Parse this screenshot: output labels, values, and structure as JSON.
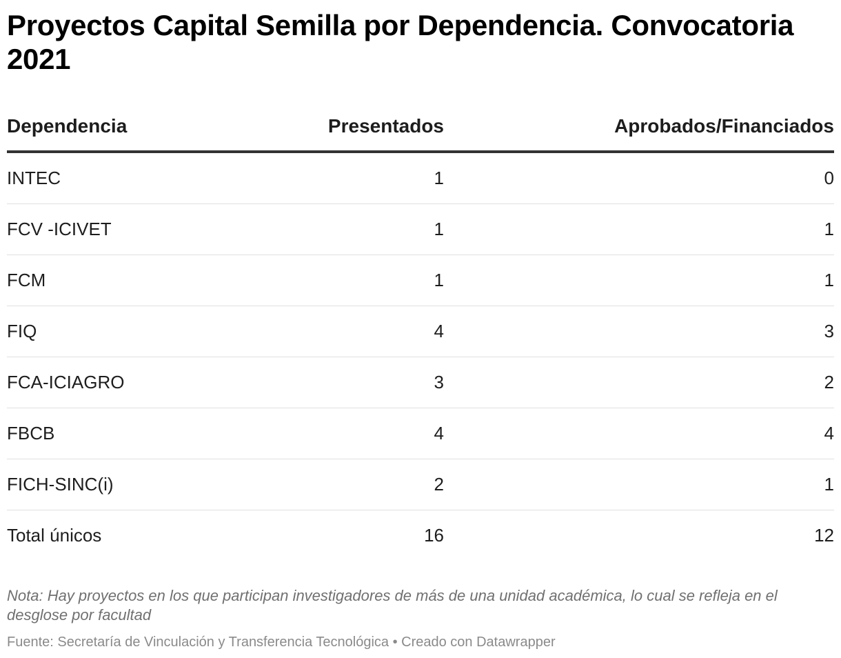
{
  "title": "Proyectos Capital Semilla por Dependencia. Convocatoria 2021",
  "chart_data": {
    "type": "table",
    "title": "Proyectos Capital Semilla por Dependencia. Convocatoria 2021",
    "columns": [
      "Dependencia",
      "Presentados",
      "Aprobados/Financiados"
    ],
    "rows": [
      [
        "INTEC",
        "1",
        "0"
      ],
      [
        "FCV -ICIVET",
        "1",
        "1"
      ],
      [
        "FCM",
        "1",
        "1"
      ],
      [
        "FIQ",
        "4",
        "3"
      ],
      [
        "FCA-ICIAGRO",
        "3",
        "2"
      ],
      [
        "FBCB",
        "4",
        "4"
      ],
      [
        "FICH-SINC(i)",
        "2",
        "1"
      ],
      [
        "Total únicos",
        "16",
        "12"
      ]
    ]
  },
  "notes": "Nota: Hay proyectos en los que participan investigadores de más de una unidad académica, lo cual se refleja en el desglose por facultad",
  "source": "Fuente: Secretaría de Vinculación y Transferencia Tecnológica • Creado con Datawrapper",
  "colors": {
    "text": "#1d1d1d",
    "header_rule": "#333333",
    "row_rule": "#e0e0e0",
    "notes": "#707070",
    "source": "#8a8a8a"
  }
}
